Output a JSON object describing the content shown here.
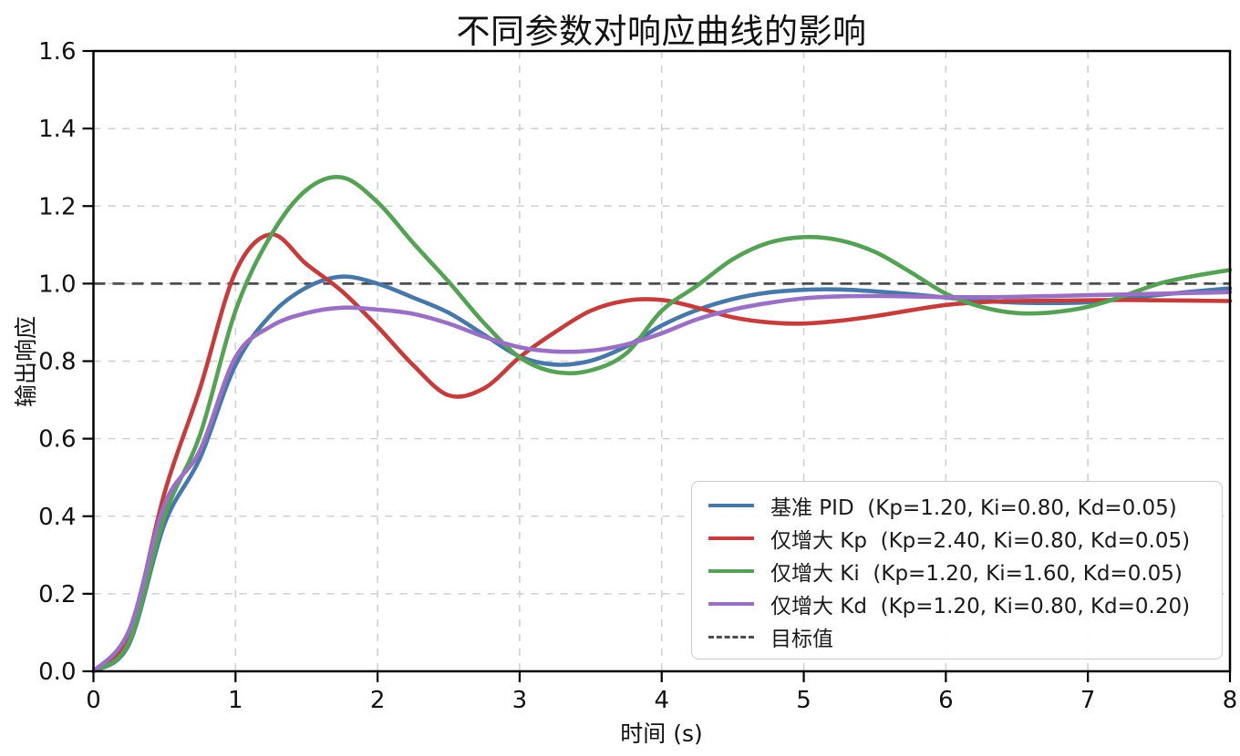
{
  "chart_data": {
    "type": "line",
    "title": "不同参数对响应曲线的影响",
    "xlabel": "时间 (s)",
    "ylabel": "输出响应",
    "xlim": [
      0,
      8
    ],
    "ylim": [
      0,
      1.6
    ],
    "grid": true,
    "grid_style": "dashed",
    "legend_position": "lower right",
    "xticks": {
      "values": [
        0,
        1,
        2,
        3,
        4,
        5,
        6,
        7,
        8
      ],
      "labels": [
        "0",
        "1",
        "2",
        "3",
        "4",
        "5",
        "6",
        "7",
        "8"
      ]
    },
    "yticks": {
      "values": [
        0,
        0.2,
        0.4,
        0.6,
        0.8,
        1.0,
        1.2,
        1.4,
        1.6
      ],
      "labels": [
        "0.0",
        "0.2",
        "0.4",
        "0.6",
        "0.8",
        "1.0",
        "1.2",
        "1.4",
        "1.6"
      ]
    },
    "x_start": 0,
    "x_step": 0.25,
    "series": [
      {
        "id": "base-pid",
        "label": "基准 PID  (Kp=1.20, Ki=0.80, Kd=0.05)",
        "color": "#4878A8",
        "values": [
          0.0,
          0.07,
          0.38,
          0.55,
          0.79,
          0.92,
          0.99,
          1.018,
          1.0,
          0.964,
          0.925,
          0.868,
          0.812,
          0.791,
          0.801,
          0.838,
          0.892,
          0.932,
          0.96,
          0.977,
          0.984,
          0.985,
          0.98,
          0.973,
          0.964,
          0.956,
          0.951,
          0.95,
          0.952,
          0.961,
          0.971,
          0.98,
          0.988
        ]
      },
      {
        "id": "kp-up",
        "label": "仅增大 Kp  (Kp=2.40, Ki=0.80, Kd=0.05)",
        "color": "#C33D3D",
        "values": [
          0.0,
          0.095,
          0.46,
          0.73,
          1.03,
          1.127,
          1.05,
          0.98,
          0.889,
          0.79,
          0.712,
          0.73,
          0.81,
          0.875,
          0.93,
          0.956,
          0.958,
          0.938,
          0.913,
          0.9,
          0.897,
          0.904,
          0.916,
          0.931,
          0.945,
          0.952,
          0.955,
          0.956,
          0.957,
          0.958,
          0.957,
          0.956,
          0.955
        ]
      },
      {
        "id": "ki-up",
        "label": "仅增大 Ki  (Kp=1.20, Ki=1.60, Kd=0.05)",
        "color": "#55A155",
        "values": [
          0.0,
          0.075,
          0.4,
          0.61,
          0.93,
          1.125,
          1.242,
          1.274,
          1.21,
          1.105,
          1.005,
          0.898,
          0.81,
          0.772,
          0.776,
          0.82,
          0.93,
          0.995,
          1.063,
          1.105,
          1.12,
          1.112,
          1.082,
          1.03,
          0.974,
          0.94,
          0.924,
          0.926,
          0.94,
          0.968,
          1.0,
          1.02,
          1.035
        ]
      },
      {
        "id": "kd-up",
        "label": "仅增大 Kd  (Kp=1.20, Ki=0.80, Kd=0.20)",
        "color": "#9A70C4",
        "values": [
          0.0,
          0.105,
          0.43,
          0.57,
          0.81,
          0.89,
          0.924,
          0.938,
          0.933,
          0.922,
          0.897,
          0.863,
          0.836,
          0.825,
          0.827,
          0.843,
          0.872,
          0.908,
          0.933,
          0.95,
          0.962,
          0.967,
          0.968,
          0.967,
          0.965,
          0.965,
          0.966,
          0.968,
          0.97,
          0.972,
          0.974,
          0.976,
          0.978
        ]
      }
    ],
    "target": {
      "label": "目标值",
      "value": 1.0,
      "color": "#4D4D4D",
      "style": "dashed"
    },
    "colors": {
      "grid": "#CFCFCF",
      "spine": "#000000",
      "text": "#111111"
    }
  }
}
